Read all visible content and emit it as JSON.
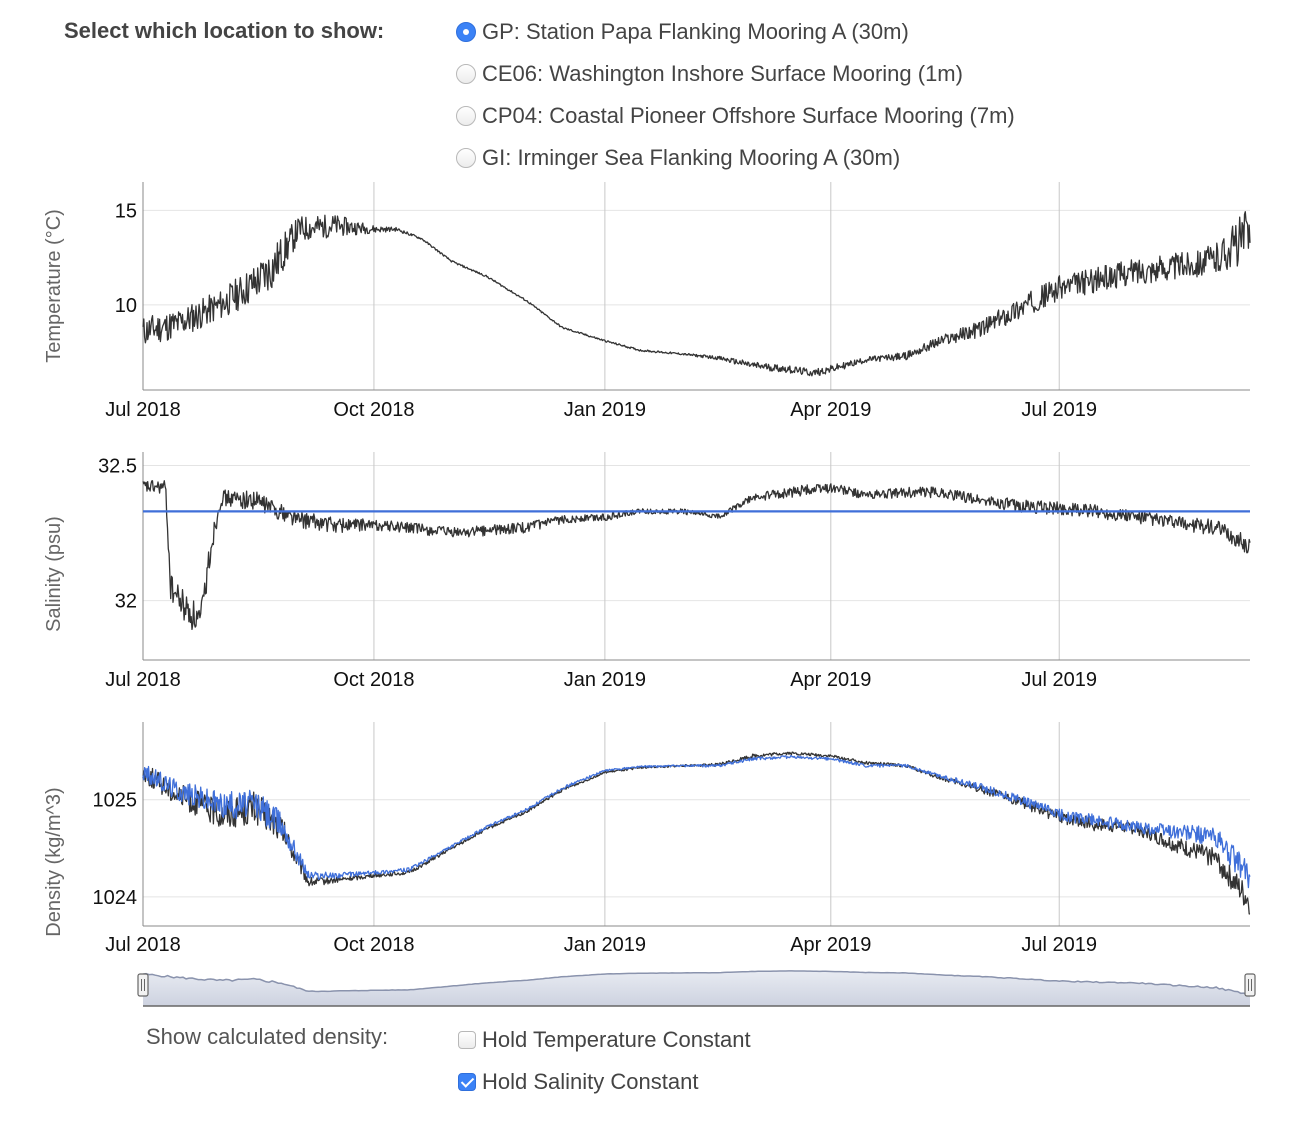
{
  "location_selector": {
    "label": "Select which location to show:",
    "options": [
      {
        "label": "GP: Station Papa Flanking Mooring A (30m)",
        "checked": true
      },
      {
        "label": "CE06: Washington Inshore Surface Mooring (1m)",
        "checked": false
      },
      {
        "label": "CP04: Coastal Pioneer Offshore Surface Mooring (7m)",
        "checked": false
      },
      {
        "label": "GI: Irminger Sea Flanking Mooring A (30m)",
        "checked": false
      }
    ]
  },
  "density_options": {
    "label": "Show calculated density:",
    "options": [
      {
        "label": "Hold Temperature Constant",
        "checked": false
      },
      {
        "label": "Hold Salinity Constant",
        "checked": true
      }
    ]
  },
  "colors": {
    "observed": "#333333",
    "calculated": "#3f6fd9",
    "accent": "#3b82f6",
    "grid": "#e4e4e4",
    "navigator_fill": "#cdd2e0"
  },
  "chart_data": [
    {
      "type": "line",
      "ylabel": "Temperature (°C)",
      "x_ticks": [
        "Jul 2018",
        "Oct 2018",
        "Jan 2019",
        "Apr 2019",
        "Jul 2019"
      ],
      "y_ticks": [
        "10",
        "15"
      ],
      "ylim": [
        5.5,
        16.5
      ],
      "xlim": [
        "2018-07-01",
        "2019-09-15"
      ],
      "grid": true,
      "series": [
        {
          "x": [
            "2018-07-01",
            "2018-07-15",
            "2018-08-01",
            "2018-08-15",
            "2018-08-22",
            "2018-09-01",
            "2018-09-15",
            "2018-10-01",
            "2018-10-10",
            "2018-10-20",
            "2018-11-01",
            "2018-11-15",
            "2018-12-01",
            "2018-12-15",
            "2019-01-01",
            "2019-01-15",
            "2019-02-01",
            "2019-02-15",
            "2019-03-01",
            "2019-03-15",
            "2019-03-25",
            "2019-04-01",
            "2019-04-15",
            "2019-05-01",
            "2019-05-15",
            "2019-06-01",
            "2019-06-15",
            "2019-07-01",
            "2019-07-15",
            "2019-08-01",
            "2019-08-15",
            "2019-09-01",
            "2019-09-15"
          ],
          "y": [
            8.6,
            9.0,
            10.0,
            11.2,
            12.0,
            14.0,
            14.2,
            14.0,
            14.0,
            13.5,
            12.3,
            11.5,
            10.2,
            8.8,
            8.1,
            7.6,
            7.4,
            7.2,
            6.8,
            6.6,
            6.4,
            6.6,
            7.1,
            7.3,
            8.1,
            8.8,
            9.8,
            10.9,
            11.3,
            11.8,
            12.0,
            12.4,
            13.8
          ],
          "noise": [
            1.6,
            1.6,
            1.6,
            2.0,
            2.4,
            1.4,
            1.2,
            0.4,
            0.2,
            0.1,
            0.1,
            0.1,
            0.1,
            0.1,
            0.1,
            0.1,
            0.1,
            0.2,
            0.4,
            0.4,
            0.4,
            0.4,
            0.3,
            0.4,
            0.6,
            0.9,
            1.2,
            1.3,
            1.3,
            1.4,
            1.4,
            1.6,
            3.0
          ]
        }
      ]
    },
    {
      "type": "line",
      "ylabel": "Salinity (psu)",
      "x_ticks": [
        "Jul 2018",
        "Oct 2018",
        "Jan 2019",
        "Apr 2019",
        "Jul 2019"
      ],
      "y_ticks": [
        "32",
        "32.5"
      ],
      "ylim": [
        31.78,
        32.55
      ],
      "xlim": [
        "2018-07-01",
        "2019-09-15"
      ],
      "grid": true,
      "series": [
        {
          "x": [
            "2018-07-01",
            "2018-07-10",
            "2018-07-12",
            "2018-07-18",
            "2018-07-24",
            "2018-07-28",
            "2018-08-01",
            "2018-08-15",
            "2018-09-01",
            "2018-09-15",
            "2018-10-01",
            "2018-10-15",
            "2018-11-01",
            "2018-11-15",
            "2018-12-01",
            "2018-12-15",
            "2019-01-01",
            "2019-01-15",
            "2019-02-01",
            "2019-02-15",
            "2019-03-01",
            "2019-03-15",
            "2019-04-01",
            "2019-04-15",
            "2019-05-01",
            "2019-05-15",
            "2019-06-01",
            "2019-06-15",
            "2019-07-01",
            "2019-07-15",
            "2019-08-01",
            "2019-08-15",
            "2019-09-01",
            "2019-09-15"
          ],
          "y": [
            32.42,
            32.42,
            32.05,
            31.97,
            31.92,
            32.2,
            32.38,
            32.37,
            32.3,
            32.28,
            32.28,
            32.27,
            32.25,
            32.26,
            32.27,
            32.3,
            32.31,
            32.33,
            32.33,
            32.31,
            32.38,
            32.4,
            32.42,
            32.39,
            32.4,
            32.4,
            32.37,
            32.35,
            32.34,
            32.33,
            32.31,
            32.29,
            32.27,
            32.2
          ],
          "noise": [
            0.05,
            0.05,
            0.1,
            0.12,
            0.12,
            0.1,
            0.06,
            0.07,
            0.06,
            0.06,
            0.04,
            0.04,
            0.04,
            0.04,
            0.04,
            0.03,
            0.03,
            0.02,
            0.02,
            0.02,
            0.03,
            0.04,
            0.04,
            0.03,
            0.04,
            0.04,
            0.04,
            0.05,
            0.05,
            0.05,
            0.05,
            0.05,
            0.06,
            0.07
          ]
        },
        {
          "name": "constant",
          "x": [
            "2018-07-01",
            "2019-09-15"
          ],
          "y": [
            32.33,
            32.33
          ]
        }
      ]
    },
    {
      "type": "line",
      "ylabel": "Density (kg/m^3)",
      "x_ticks": [
        "Jul 2018",
        "Oct 2018",
        "Jan 2019",
        "Apr 2019",
        "Jul 2019"
      ],
      "y_ticks": [
        "1024",
        "1025"
      ],
      "ylim": [
        1023.7,
        1025.8
      ],
      "xlim": [
        "2018-07-01",
        "2019-09-15"
      ],
      "grid": true,
      "series": [
        {
          "x": [
            "2018-07-01",
            "2018-07-15",
            "2018-08-01",
            "2018-08-15",
            "2018-08-25",
            "2018-09-05",
            "2018-09-15",
            "2018-10-01",
            "2018-10-15",
            "2018-11-01",
            "2018-11-15",
            "2018-12-01",
            "2018-12-15",
            "2019-01-01",
            "2019-01-15",
            "2019-02-01",
            "2019-02-15",
            "2019-03-01",
            "2019-03-15",
            "2019-04-01",
            "2019-04-15",
            "2019-05-01",
            "2019-05-15",
            "2019-06-01",
            "2019-06-15",
            "2019-07-01",
            "2019-07-15",
            "2019-08-01",
            "2019-08-15",
            "2019-09-01",
            "2019-09-15"
          ],
          "y": [
            1025.28,
            1025.05,
            1024.85,
            1024.92,
            1024.7,
            1024.15,
            1024.17,
            1024.22,
            1024.25,
            1024.5,
            1024.7,
            1024.88,
            1025.1,
            1025.28,
            1025.33,
            1025.35,
            1025.36,
            1025.45,
            1025.48,
            1025.45,
            1025.38,
            1025.35,
            1025.22,
            1025.1,
            1024.98,
            1024.82,
            1024.75,
            1024.7,
            1024.55,
            1024.4,
            1023.95
          ],
          "noise": [
            0.2,
            0.25,
            0.3,
            0.35,
            0.3,
            0.1,
            0.06,
            0.04,
            0.04,
            0.03,
            0.03,
            0.03,
            0.03,
            0.02,
            0.02,
            0.02,
            0.03,
            0.04,
            0.03,
            0.03,
            0.03,
            0.03,
            0.04,
            0.08,
            0.1,
            0.12,
            0.14,
            0.12,
            0.16,
            0.2,
            0.3
          ]
        },
        {
          "name": "calculated",
          "x": [
            "2018-07-01",
            "2018-07-15",
            "2018-08-01",
            "2018-08-15",
            "2018-08-25",
            "2018-09-05",
            "2018-09-15",
            "2018-10-01",
            "2018-10-15",
            "2018-11-01",
            "2018-11-15",
            "2018-12-01",
            "2018-12-15",
            "2019-01-01",
            "2019-01-15",
            "2019-02-01",
            "2019-02-15",
            "2019-03-01",
            "2019-03-15",
            "2019-04-01",
            "2019-04-15",
            "2019-05-01",
            "2019-05-15",
            "2019-06-01",
            "2019-06-15",
            "2019-07-01",
            "2019-07-15",
            "2019-08-01",
            "2019-08-15",
            "2019-09-01",
            "2019-09-15"
          ],
          "y": [
            1025.28,
            1025.1,
            1024.95,
            1024.95,
            1024.75,
            1024.22,
            1024.22,
            1024.25,
            1024.28,
            1024.52,
            1024.72,
            1024.9,
            1025.12,
            1025.3,
            1025.34,
            1025.35,
            1025.35,
            1025.42,
            1025.44,
            1025.42,
            1025.35,
            1025.35,
            1025.24,
            1025.12,
            1025.0,
            1024.85,
            1024.78,
            1024.72,
            1024.68,
            1024.62,
            1024.2
          ],
          "noise": [
            0.18,
            0.22,
            0.28,
            0.32,
            0.28,
            0.1,
            0.06,
            0.04,
            0.04,
            0.03,
            0.03,
            0.03,
            0.03,
            0.02,
            0.02,
            0.02,
            0.03,
            0.03,
            0.03,
            0.03,
            0.03,
            0.03,
            0.04,
            0.08,
            0.1,
            0.12,
            0.14,
            0.12,
            0.16,
            0.2,
            0.3
          ]
        }
      ]
    }
  ]
}
